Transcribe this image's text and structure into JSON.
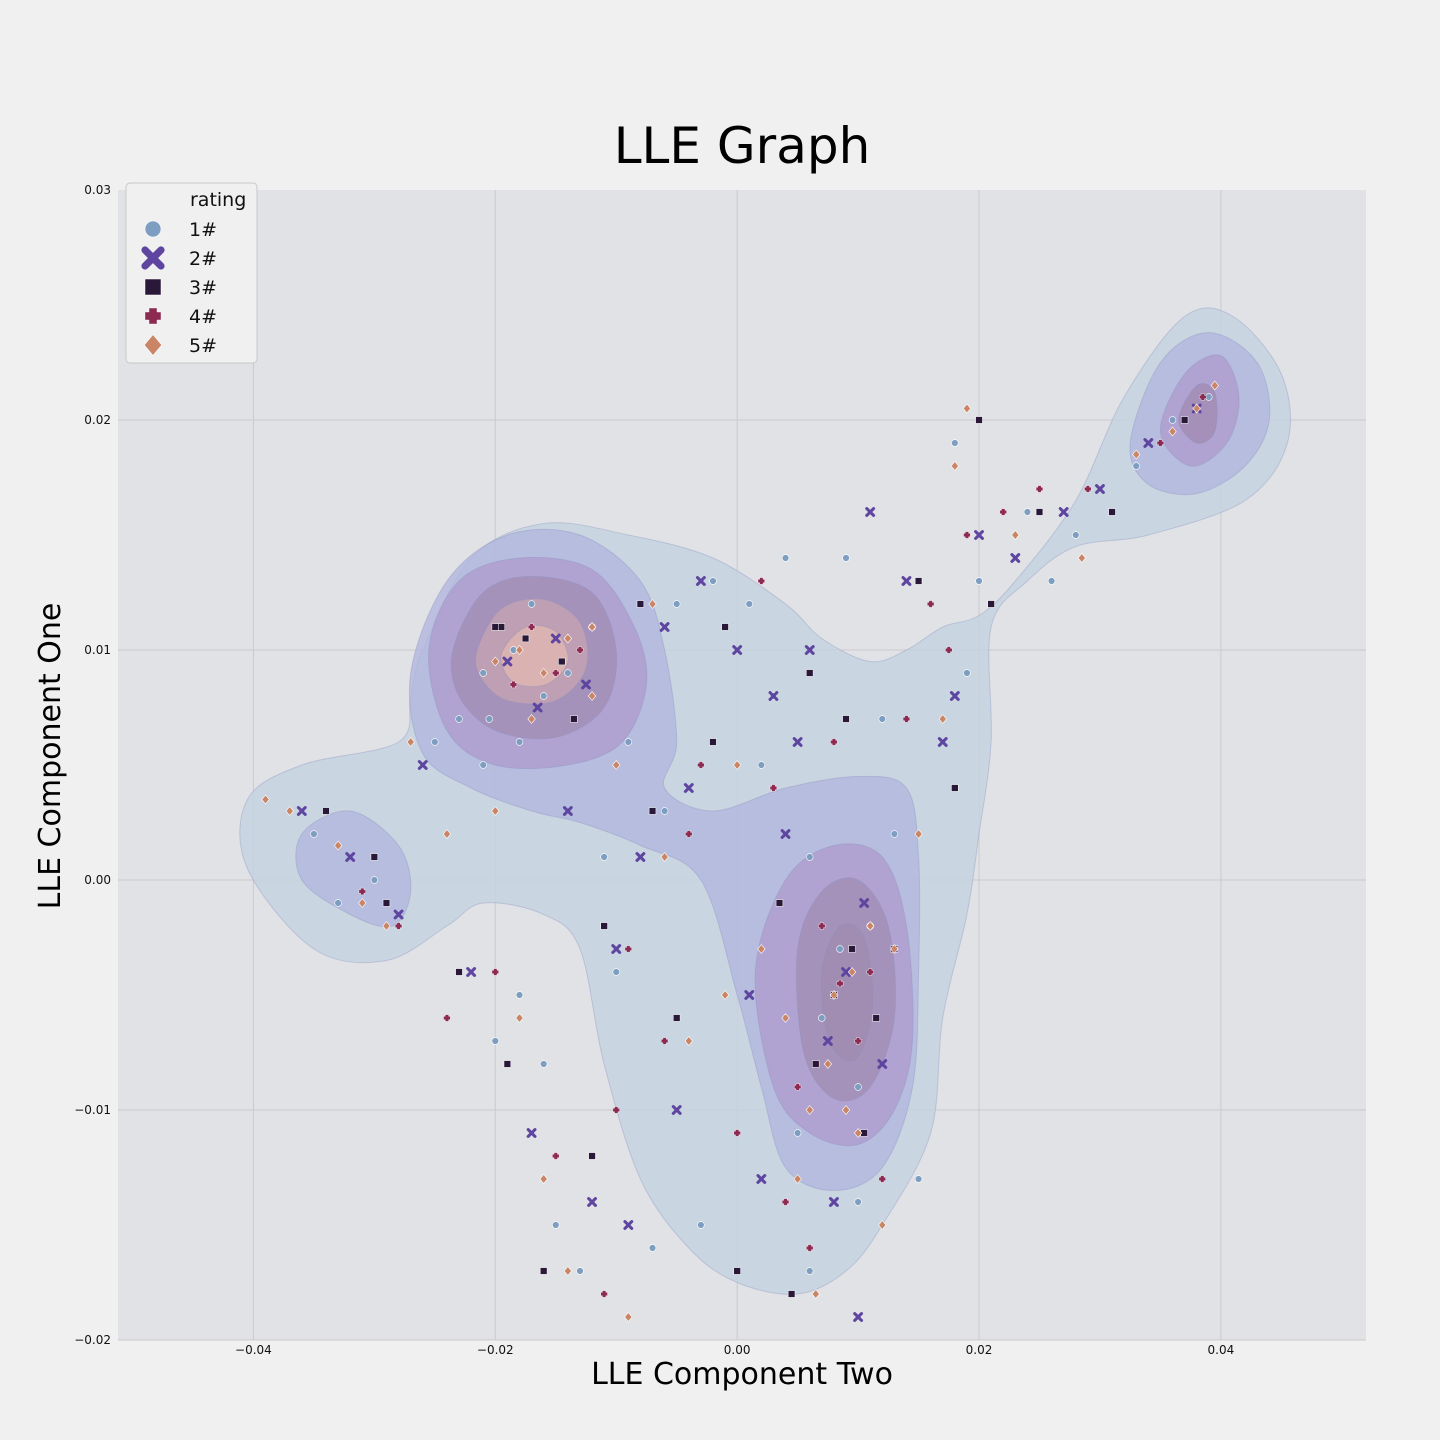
{
  "chart_data": {
    "type": "scatter",
    "title": "LLE Graph",
    "xlabel": "LLE Component Two",
    "ylabel": "LLE Component One",
    "xlim": [
      -0.0512,
      0.052
    ],
    "ylim": [
      -0.02,
      0.03
    ],
    "xticks": [
      -0.04,
      -0.02,
      0.0,
      0.02,
      0.04
    ],
    "xtick_labels": [
      "−0.04",
      "−0.02",
      "0.00",
      "0.02",
      "0.04"
    ],
    "yticks": [
      -0.02,
      -0.01,
      0.0,
      0.01,
      0.02,
      0.03
    ],
    "ytick_labels": [
      "−0.02",
      "−0.01",
      "0.00",
      "0.01",
      "0.02",
      "0.03"
    ],
    "grid": true,
    "legend": {
      "title": "rating",
      "placement": "top-left",
      "entries": [
        {
          "label": "1#",
          "marker": "circle",
          "color": "#7d9ec0"
        },
        {
          "label": "2#",
          "marker": "x",
          "color": "#5e46a0"
        },
        {
          "label": "3#",
          "marker": "square",
          "color": "#2a1838"
        },
        {
          "label": "4#",
          "marker": "plus",
          "color": "#8c2a52"
        },
        {
          "label": "5#",
          "marker": "diamond",
          "color": "#c98566"
        }
      ]
    },
    "density_overlay": {
      "kind": "kde-contour",
      "colors": [
        "#c4d2e0",
        "#b3b6dd",
        "#ad9bcd",
        "#9f88ad",
        "#c9a5b0",
        "#e2b8b0"
      ],
      "peaks": [
        {
          "x": -0.0158,
          "y": 0.0095,
          "levels": 6
        },
        {
          "x": 0.0085,
          "y": -0.0048,
          "levels": 4
        },
        {
          "x": 0.0375,
          "y": 0.0202,
          "levels": 4
        }
      ]
    },
    "series": [
      {
        "name": "1#",
        "marker": "circle",
        "color": "#7d9ec0",
        "x": [
          -0.0185,
          -0.016,
          -0.014,
          -0.012,
          -0.0205,
          -0.017,
          0.0085,
          0.007,
          0.01,
          0.011,
          0.006,
          0.005,
          0.013,
          0.002,
          -0.006,
          -0.009,
          -0.021,
          -0.023,
          -0.018,
          -0.015,
          -0.003,
          0.001,
          0.018,
          0.02,
          0.028,
          0.033,
          0.036,
          0.039,
          -0.035,
          -0.03,
          -0.033,
          -0.025,
          0.004,
          0.009,
          -0.005,
          -0.002,
          -0.016,
          -0.02,
          0.015,
          0.019,
          0.012,
          -0.011,
          -0.01,
          0.003,
          -0.013,
          -0.007,
          0.024,
          0.026,
          0.01,
          0.006,
          -0.021,
          -0.018
        ],
        "y": [
          0.01,
          0.008,
          0.009,
          0.011,
          0.007,
          0.012,
          -0.003,
          -0.006,
          -0.009,
          -0.002,
          0.001,
          -0.011,
          0.002,
          0.005,
          0.003,
          0.006,
          0.005,
          0.007,
          -0.005,
          -0.015,
          -0.015,
          0.012,
          0.019,
          0.013,
          0.015,
          0.018,
          0.02,
          0.021,
          0.002,
          0.0,
          -0.001,
          0.006,
          0.014,
          0.014,
          0.012,
          0.013,
          -0.008,
          -0.007,
          -0.013,
          0.009,
          0.007,
          0.001,
          -0.004,
          0.008,
          -0.017,
          -0.016,
          0.016,
          0.013,
          -0.014,
          -0.017,
          0.009,
          0.006
        ]
      },
      {
        "name": "2#",
        "marker": "x",
        "color": "#5e46a0",
        "x": [
          -0.019,
          -0.015,
          -0.0125,
          -0.0165,
          0.009,
          0.0075,
          0.0105,
          0.004,
          0.012,
          0.001,
          -0.004,
          -0.008,
          -0.026,
          -0.022,
          0.006,
          0.017,
          0.02,
          0.03,
          0.034,
          0.038,
          -0.036,
          -0.032,
          -0.028,
          -0.01,
          -0.005,
          0.002,
          0.014,
          0.018,
          0.008,
          -0.003,
          -0.017,
          -0.012,
          0.011,
          0.005,
          0.023,
          0.027,
          0.01,
          0.0,
          -0.006,
          -0.014,
          -0.009,
          0.003
        ],
        "y": [
          0.0095,
          0.0105,
          0.0085,
          0.0075,
          -0.004,
          -0.007,
          -0.001,
          0.002,
          -0.008,
          -0.005,
          0.004,
          0.001,
          0.005,
          -0.004,
          0.01,
          0.006,
          0.015,
          0.017,
          0.019,
          0.0205,
          0.003,
          0.001,
          -0.0015,
          -0.003,
          -0.01,
          -0.013,
          0.013,
          0.008,
          -0.014,
          0.013,
          -0.011,
          -0.014,
          0.016,
          0.006,
          0.014,
          0.016,
          -0.019,
          0.01,
          0.011,
          0.003,
          -0.015,
          0.008
        ]
      },
      {
        "name": "3#",
        "marker": "square",
        "color": "#2a1838",
        "x": [
          -0.0175,
          -0.0145,
          -0.0195,
          -0.0135,
          0.008,
          0.0095,
          0.0065,
          0.0115,
          0.0035,
          -0.001,
          -0.007,
          -0.023,
          -0.019,
          0.015,
          0.021,
          0.031,
          0.037,
          -0.034,
          -0.03,
          -0.029,
          -0.011,
          0.0,
          0.0045,
          0.013,
          -0.002,
          -0.016,
          -0.012,
          0.02,
          0.025,
          0.009,
          -0.005,
          0.006,
          -0.008,
          0.018,
          -0.02,
          0.0105
        ],
        "y": [
          0.0105,
          0.0095,
          0.011,
          0.007,
          -0.005,
          -0.003,
          -0.008,
          -0.006,
          -0.001,
          0.011,
          0.003,
          -0.004,
          -0.008,
          0.013,
          0.012,
          0.016,
          0.02,
          0.003,
          0.001,
          -0.001,
          -0.002,
          -0.017,
          -0.018,
          -0.003,
          0.006,
          -0.017,
          -0.012,
          0.02,
          0.016,
          0.007,
          -0.006,
          0.009,
          0.012,
          0.004,
          0.011,
          -0.011
        ]
      },
      {
        "name": "4#",
        "marker": "plus",
        "color": "#8c2a52",
        "x": [
          -0.017,
          -0.015,
          -0.013,
          -0.0185,
          0.0085,
          0.01,
          0.007,
          0.011,
          0.005,
          0.002,
          -0.003,
          -0.009,
          -0.02,
          -0.024,
          0.016,
          0.019,
          0.022,
          0.029,
          0.035,
          0.0385,
          -0.031,
          -0.028,
          -0.01,
          0.0,
          0.004,
          0.012,
          -0.015,
          -0.011,
          0.008,
          0.014,
          -0.006,
          0.003,
          0.006,
          -0.004,
          0.025,
          0.0175
        ],
        "y": [
          0.011,
          0.009,
          0.01,
          0.0085,
          -0.0045,
          -0.007,
          -0.002,
          -0.004,
          -0.009,
          0.013,
          0.005,
          -0.003,
          -0.004,
          -0.006,
          0.012,
          0.015,
          0.016,
          0.017,
          0.019,
          0.021,
          -0.0005,
          -0.002,
          -0.01,
          -0.011,
          -0.014,
          -0.013,
          -0.012,
          -0.018,
          0.006,
          0.007,
          -0.007,
          0.004,
          -0.016,
          0.002,
          0.017,
          0.01
        ]
      },
      {
        "name": "5#",
        "marker": "diamond",
        "color": "#c98566",
        "x": [
          -0.018,
          -0.016,
          -0.014,
          -0.02,
          -0.012,
          -0.017,
          0.008,
          0.0095,
          0.0075,
          0.011,
          0.006,
          0.013,
          0.004,
          -0.001,
          -0.006,
          -0.01,
          -0.027,
          -0.024,
          -0.018,
          -0.016,
          -0.014,
          -0.009,
          0.018,
          0.019,
          0.023,
          0.0285,
          0.033,
          0.036,
          0.038,
          0.0395,
          -0.039,
          -0.037,
          -0.033,
          -0.031,
          -0.029,
          0.002,
          0.005,
          0.01,
          -0.004,
          0.015,
          0.017,
          -0.012,
          -0.007,
          0.009,
          0.0,
          -0.02,
          0.012,
          0.0065
        ],
        "y": [
          0.01,
          0.009,
          0.0105,
          0.0095,
          0.008,
          0.007,
          -0.005,
          -0.004,
          -0.008,
          -0.002,
          -0.01,
          -0.003,
          -0.006,
          -0.005,
          0.001,
          0.005,
          0.006,
          0.002,
          -0.006,
          -0.013,
          -0.017,
          -0.019,
          0.018,
          0.0205,
          0.015,
          0.014,
          0.0185,
          0.0195,
          0.0205,
          0.0215,
          0.0035,
          0.003,
          0.0015,
          -0.001,
          -0.002,
          -0.003,
          -0.013,
          -0.011,
          -0.007,
          0.002,
          0.007,
          0.011,
          0.012,
          -0.01,
          0.005,
          0.003,
          -0.015,
          -0.018
        ]
      }
    ]
  }
}
